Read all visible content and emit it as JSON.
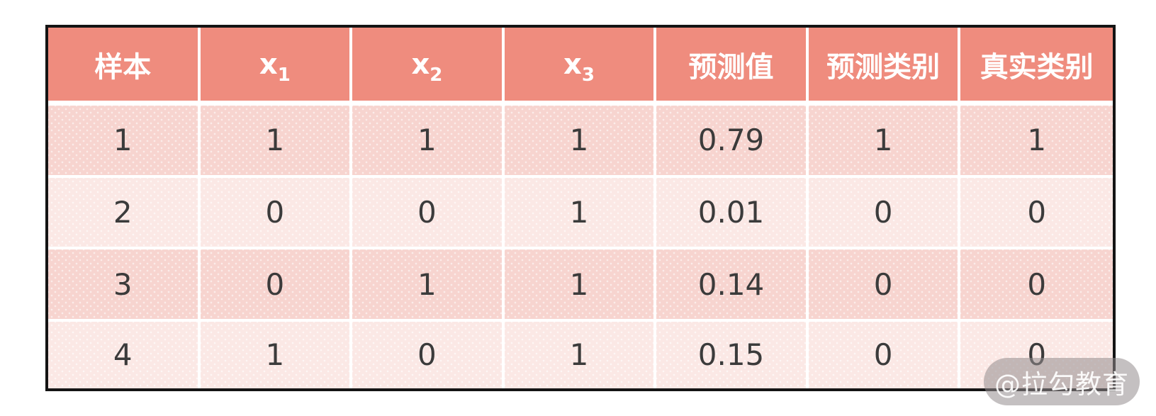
{
  "table": {
    "columns": [
      {
        "label": "样本"
      },
      {
        "label": "x",
        "sub": "1"
      },
      {
        "label": "x",
        "sub": "2"
      },
      {
        "label": "x",
        "sub": "3"
      },
      {
        "label": "预测值"
      },
      {
        "label": "预测类别"
      },
      {
        "label": "真实类别"
      }
    ],
    "rows": [
      [
        "1",
        "1",
        "1",
        "1",
        "0.79",
        "1",
        "1"
      ],
      [
        "2",
        "0",
        "0",
        "1",
        "0.01",
        "0",
        "0"
      ],
      [
        "3",
        "0",
        "1",
        "1",
        "0.14",
        "0",
        "0"
      ],
      [
        "4",
        "1",
        "0",
        "1",
        "0.15",
        "0",
        "0"
      ]
    ]
  },
  "watermark": {
    "text": "@拉勾教育"
  },
  "colors": {
    "header_bg": "#ef8c7e",
    "row_odd_bg": "#f7d4cf",
    "row_even_bg": "#fbe8e5",
    "header_text": "#ffffff",
    "cell_text": "#3b3b3b",
    "table_border": "#141414",
    "grid_line": "#ffffff",
    "watermark_bg": "rgba(147,141,142,0.55)",
    "watermark_text": "rgba(255,255,255,0.92)"
  }
}
